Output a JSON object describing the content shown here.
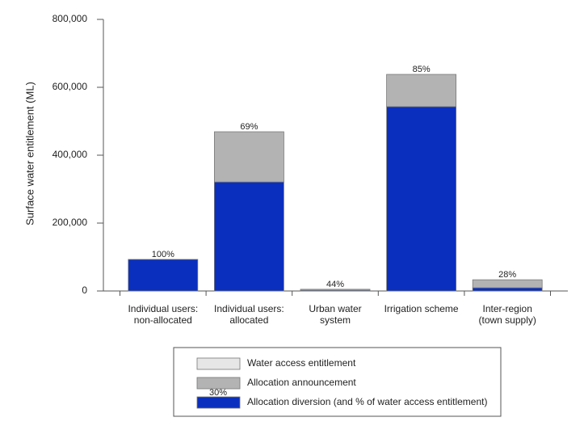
{
  "chart_data": {
    "type": "bar",
    "y_label": "Surface water entitlement (ML)",
    "categories": [
      "Individual users:\nnon-allocated",
      "Individual users:\nallocated",
      "Urban water\nsystem",
      "Irrigation scheme",
      "Inter-region\n(town supply)"
    ],
    "series": [
      {
        "name": "Allocation diversion (and % of water access entitlement)",
        "color": "#0a2fbf",
        "values": [
          93000,
          321000,
          2200,
          543000,
          9300
        ]
      },
      {
        "name": "Allocation announcement",
        "color": "#b3b3b3",
        "values": [
          0,
          148000,
          2800,
          95000,
          23700
        ]
      },
      {
        "name": "Water access entitlement",
        "color": "#e6e6e6",
        "values": [
          0,
          0,
          0,
          0,
          0
        ]
      }
    ],
    "percent_labels": [
      "100%",
      "69%",
      "44%",
      "85%",
      "28%"
    ],
    "legend_sample_label": "30%",
    "ylim": [
      0,
      800000
    ],
    "yticks": [
      {
        "value": 0,
        "label": "0"
      },
      {
        "value": 200000,
        "label": "200,000"
      },
      {
        "value": 400000,
        "label": "400,000"
      },
      {
        "value": 600000,
        "label": "600,000"
      },
      {
        "value": 800000,
        "label": "800,000"
      }
    ],
    "stacked": true
  }
}
